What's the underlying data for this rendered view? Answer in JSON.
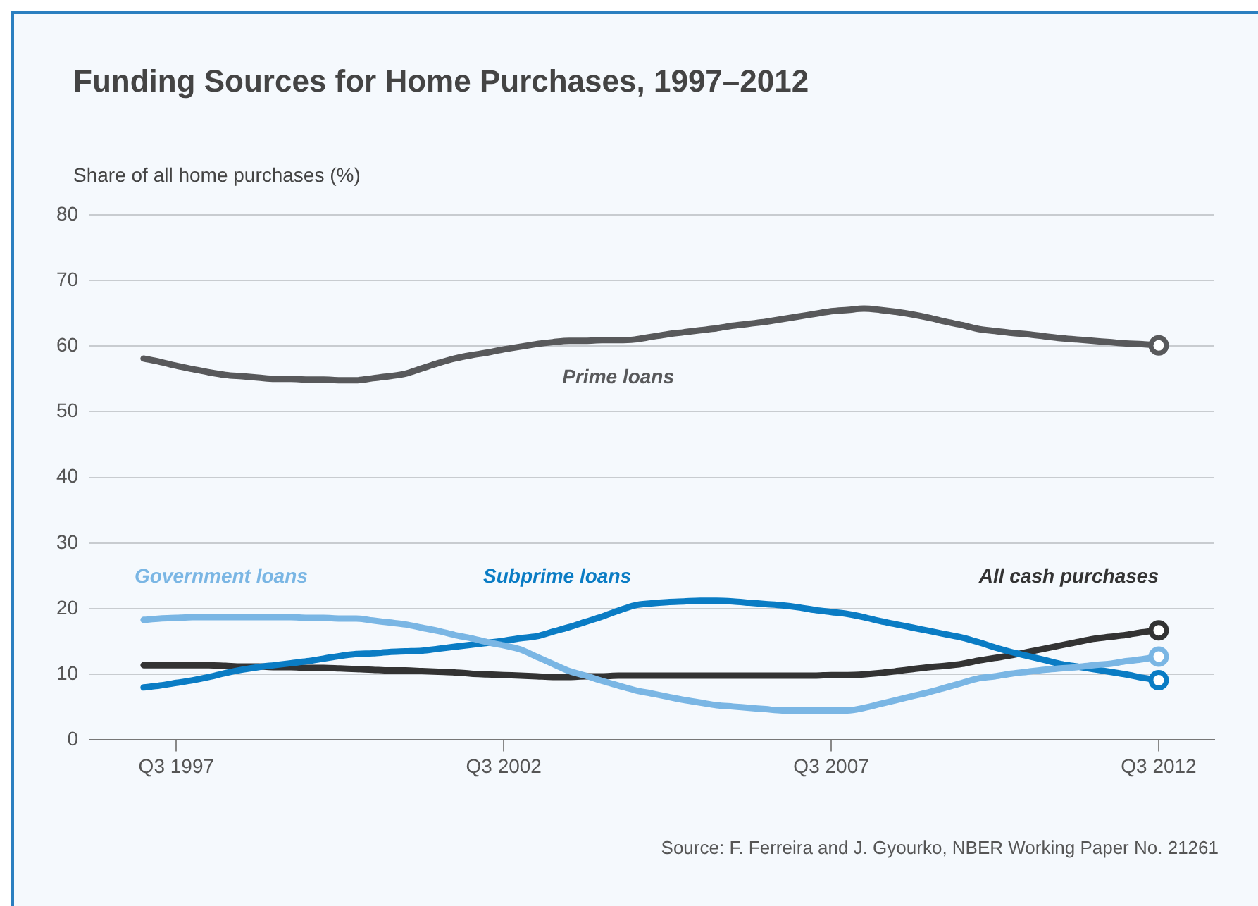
{
  "chart_data": {
    "type": "line",
    "title": "Funding Sources for Home Purchases, 1997–2012",
    "ylabel": "Share of all home purchases (%)",
    "annotations": [
      "Source: F. Ferreira and J. Gyourko, NBER Working Paper No. 21261"
    ],
    "categories": [
      null,
      null,
      "Q3 1997",
      null,
      null,
      null,
      null,
      null,
      null,
      null,
      null,
      null,
      null,
      null,
      null,
      null,
      null,
      null,
      null,
      null,
      null,
      null,
      "Q3 2002",
      null,
      null,
      null,
      null,
      null,
      null,
      null,
      null,
      null,
      null,
      null,
      null,
      null,
      null,
      null,
      null,
      null,
      null,
      null,
      "Q3 2007",
      null,
      null,
      null,
      null,
      null,
      null,
      null,
      null,
      null,
      null,
      null,
      null,
      null,
      null,
      null,
      null,
      null,
      null,
      null,
      "Q3 2012"
    ],
    "ylim": [
      0,
      80
    ],
    "yticks": [
      0,
      10,
      20,
      30,
      40,
      50,
      60,
      70,
      80
    ],
    "grid": "y",
    "legend": false,
    "line_style": "solid",
    "series": [
      {
        "name": "Prime loans",
        "color": "#58595b",
        "values": [
          58.1,
          57.6,
          57.0,
          56.5,
          56.0,
          55.6,
          55.4,
          55.2,
          55.0,
          55.0,
          54.9,
          54.9,
          54.8,
          54.8,
          55.1,
          55.4,
          55.8,
          56.6,
          57.4,
          58.1,
          58.6,
          59.0,
          59.5,
          59.9,
          60.3,
          60.6,
          60.8,
          60.8,
          60.9,
          60.9,
          61.0,
          61.4,
          61.8,
          62.1,
          62.4,
          62.7,
          63.1,
          63.4,
          63.7,
          64.1,
          64.5,
          64.9,
          65.3,
          65.5,
          65.7,
          65.5,
          65.2,
          64.8,
          64.3,
          63.7,
          63.2,
          62.6,
          62.3,
          62.0,
          61.8,
          61.5,
          61.2,
          61.0,
          60.8,
          60.6,
          60.4,
          60.3,
          60.1
        ]
      },
      {
        "name": "Government loans",
        "color": "#7ab6e4",
        "values": [
          18.3,
          18.5,
          18.6,
          18.7,
          18.7,
          18.7,
          18.7,
          18.7,
          18.7,
          18.7,
          18.6,
          18.6,
          18.5,
          18.5,
          18.2,
          17.9,
          17.6,
          17.1,
          16.6,
          16.0,
          15.5,
          14.9,
          14.4,
          13.8,
          12.7,
          11.6,
          10.5,
          9.8,
          9.0,
          8.3,
          7.6,
          7.1,
          6.6,
          6.1,
          5.7,
          5.3,
          5.1,
          4.9,
          4.7,
          4.5,
          4.5,
          4.5,
          4.5,
          4.5,
          4.9,
          5.5,
          6.1,
          6.7,
          7.3,
          8.0,
          8.7,
          9.4,
          9.7,
          10.1,
          10.4,
          10.7,
          10.9,
          11.1,
          11.4,
          11.6,
          12.0,
          12.3,
          12.7
        ]
      },
      {
        "name": "Subprime loans",
        "color": "#0a7cc4",
        "values": [
          8.0,
          8.3,
          8.7,
          9.1,
          9.6,
          10.2,
          10.7,
          11.1,
          11.4,
          11.7,
          12.0,
          12.4,
          12.8,
          13.1,
          13.2,
          13.4,
          13.5,
          13.6,
          13.9,
          14.2,
          14.5,
          14.8,
          15.1,
          15.5,
          15.8,
          16.5,
          17.2,
          18.0,
          18.8,
          19.7,
          20.5,
          20.8,
          21.0,
          21.1,
          21.2,
          21.2,
          21.1,
          20.9,
          20.7,
          20.5,
          20.2,
          19.8,
          19.5,
          19.2,
          18.7,
          18.1,
          17.6,
          17.1,
          16.6,
          16.1,
          15.6,
          14.9,
          14.1,
          13.4,
          12.8,
          12.2,
          11.6,
          11.2,
          10.8,
          10.4,
          10.0,
          9.5,
          9.1
        ]
      },
      {
        "name": "All cash purchases",
        "color": "#333333",
        "values": [
          11.4,
          11.4,
          11.4,
          11.4,
          11.4,
          11.3,
          11.2,
          11.2,
          11.1,
          11.1,
          11.0,
          11.0,
          10.9,
          10.8,
          10.7,
          10.6,
          10.6,
          10.5,
          10.4,
          10.3,
          10.1,
          10.0,
          9.9,
          9.8,
          9.7,
          9.6,
          9.6,
          9.7,
          9.7,
          9.8,
          9.8,
          9.8,
          9.8,
          9.8,
          9.8,
          9.8,
          9.8,
          9.8,
          9.8,
          9.8,
          9.8,
          9.8,
          9.9,
          9.9,
          10.0,
          10.2,
          10.5,
          10.8,
          11.1,
          11.3,
          11.6,
          12.1,
          12.5,
          12.9,
          13.4,
          13.9,
          14.4,
          14.9,
          15.4,
          15.7,
          16.0,
          16.4,
          16.7
        ]
      }
    ]
  }
}
